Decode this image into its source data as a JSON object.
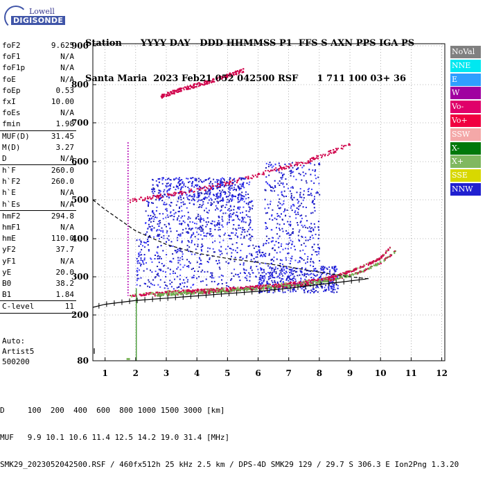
{
  "logo": {
    "line1": "Lowell",
    "line2": "DIGISONDE"
  },
  "header": {
    "row1": "Station      YYYY DAY   DDD HHMMSS P1  FFS S AXN PPS IGA PS",
    "row2": "Santa Maria  2023 Feb21 052 042500 RSF      1 711 100 03+ 36"
  },
  "parameters": {
    "group1": [
      {
        "k": "foF2",
        "v": "9.625"
      },
      {
        "k": "foF1",
        "v": "N/A"
      },
      {
        "k": "foF1p",
        "v": "N/A"
      },
      {
        "k": "foE",
        "v": "N/A"
      },
      {
        "k": "foEp",
        "v": "0.53"
      },
      {
        "k": "fxI",
        "v": "10.00"
      },
      {
        "k": "foEs",
        "v": "N/A"
      },
      {
        "k": "fmin",
        "v": "1.98"
      }
    ],
    "group2": [
      {
        "k": "MUF(D)",
        "v": "31.45"
      },
      {
        "k": "M(D)",
        "v": "3.27"
      },
      {
        "k": "D",
        "v": "N/A"
      }
    ],
    "group3": [
      {
        "k": "h`F",
        "v": "260.0"
      },
      {
        "k": "h`F2",
        "v": "260.0"
      },
      {
        "k": "h`E",
        "v": "N/A"
      },
      {
        "k": "h`Es",
        "v": "N/A"
      }
    ],
    "group4": [
      {
        "k": "hmF2",
        "v": "294.8"
      },
      {
        "k": "hmF1",
        "v": "N/A"
      },
      {
        "k": "hmE",
        "v": "110.0"
      },
      {
        "k": "yF2",
        "v": "37.7"
      },
      {
        "k": "yF1",
        "v": "N/A"
      },
      {
        "k": "yE",
        "v": "20.0"
      },
      {
        "k": "B0",
        "v": "38.2"
      },
      {
        "k": "B1",
        "v": "1.84"
      }
    ],
    "group5": [
      {
        "k": "C-level",
        "v": "11"
      }
    ]
  },
  "auto": {
    "line1": "Auto:",
    "line2": "Artist5",
    "line3": "500200"
  },
  "legend": [
    {
      "label": "NoVal",
      "bg": "#808080",
      "fg": "#ffffff"
    },
    {
      "label": "NNE",
      "bg": "#00e8f0",
      "fg": "#ffffff"
    },
    {
      "label": "E",
      "bg": "#2f9fff",
      "fg": "#ffffff"
    },
    {
      "label": "W",
      "bg": "#a000a0",
      "fg": "#ffffff"
    },
    {
      "label": "Vo-",
      "bg": "#e0006a",
      "fg": "#ffffff"
    },
    {
      "label": "Vo+",
      "bg": "#f00040",
      "fg": "#ffffff"
    },
    {
      "label": "SSW",
      "bg": "#f4a8a8",
      "fg": "#ffffff"
    },
    {
      "label": "X-",
      "bg": "#00780a",
      "fg": "#ffffff"
    },
    {
      "label": "X+",
      "bg": "#80b860",
      "fg": "#ffffff"
    },
    {
      "label": "SSE",
      "bg": "#d8d800",
      "fg": "#ffffff"
    },
    {
      "label": "NNW",
      "bg": "#2020d0",
      "fg": "#ffffff"
    }
  ],
  "bottom": {
    "row1": "D     100  200  400  600  800 1000 1500 3000 [km]",
    "row2": "MUF   9.9 10.1 10.6 11.4 12.5 14.2 19.0 31.4 [MHz]",
    "row3": "SMK29_2023052042500.RSF / 460fx512h 25 kHz 2.5 km / DPS-4D SMK29 129 / 29.7 S 306.3 E Ion2Png 1.3.20"
  },
  "chart_data": {
    "type": "scatter",
    "x_ticks": [
      "1",
      "2",
      "3",
      "4",
      "5",
      "6",
      "7",
      "8",
      "9",
      "10",
      "11",
      "12"
    ],
    "y_ticks": [
      "80",
      "200",
      "300",
      "400",
      "500",
      "600",
      "700",
      "800",
      "900"
    ],
    "xlim": [
      0.6,
      12.1
    ],
    "ylim": [
      80,
      900
    ],
    "y_scale": "nonlinear-virtual-height",
    "grid": "dotted",
    "traces": [
      {
        "name": "O-trace main",
        "color": "#d0004a",
        "points": [
          [
            1.8,
            252
          ],
          [
            2.5,
            258
          ],
          [
            3,
            262
          ],
          [
            4,
            266
          ],
          [
            5,
            270
          ],
          [
            6,
            276
          ],
          [
            7,
            284
          ],
          [
            8,
            294
          ],
          [
            8.5,
            304
          ],
          [
            9,
            316
          ],
          [
            9.5,
            332
          ],
          [
            10,
            352
          ],
          [
            10.3,
            380
          ]
        ]
      },
      {
        "name": "X-trace main",
        "color": "#70b050",
        "points": [
          [
            2.6,
            254
          ],
          [
            3.5,
            258
          ],
          [
            4.5,
            262
          ],
          [
            5.5,
            268
          ],
          [
            6.5,
            274
          ],
          [
            7.5,
            282
          ],
          [
            8.5,
            296
          ],
          [
            9,
            306
          ],
          [
            9.5,
            320
          ],
          [
            10,
            340
          ],
          [
            10.5,
            370
          ]
        ]
      },
      {
        "name": "second hop",
        "color": "#d0004a",
        "points": [
          [
            1.8,
            500
          ],
          [
            2.5,
            508
          ],
          [
            3.5,
            520
          ],
          [
            4.5,
            536
          ],
          [
            5.5,
            556
          ],
          [
            6.5,
            580
          ],
          [
            7.5,
            600
          ],
          [
            8.5,
            630
          ],
          [
            9,
            650
          ]
        ]
      },
      {
        "name": "third hop",
        "color": "#d0004a",
        "points": [
          [
            2.8,
            770
          ],
          [
            3.5,
            790
          ],
          [
            4.5,
            812
          ],
          [
            5.5,
            838
          ]
        ]
      }
    ],
    "scaled_profile": {
      "points": [
        [
          0.6,
          220
        ],
        [
          1,
          228
        ],
        [
          2,
          238
        ],
        [
          3,
          244
        ],
        [
          4,
          250
        ],
        [
          5,
          256
        ],
        [
          6,
          262
        ],
        [
          7,
          270
        ],
        [
          8,
          280
        ],
        [
          8.8,
          287
        ],
        [
          9.5,
          294
        ],
        [
          9.6,
          296
        ]
      ]
    },
    "model_trace": {
      "points": [
        [
          0.6,
          500
        ],
        [
          1,
          475
        ],
        [
          2,
          420
        ],
        [
          3,
          385
        ],
        [
          4,
          362
        ],
        [
          5,
          348
        ],
        [
          6,
          338
        ],
        [
          7,
          326
        ],
        [
          8,
          312
        ],
        [
          9,
          300
        ],
        [
          9.6,
          295
        ]
      ]
    },
    "blue_clusters": [
      {
        "x": [
          2.5,
          5.7
        ],
        "y": [
          500,
          560
        ]
      },
      {
        "x": [
          2.3,
          5.8
        ],
        "y": [
          400,
          500
        ]
      },
      {
        "x": [
          2.0,
          6.2
        ],
        "y": [
          270,
          400
        ]
      },
      {
        "x": [
          6.0,
          8.6
        ],
        "y": [
          260,
          330
        ]
      },
      {
        "x": [
          6.2,
          8.0
        ],
        "y": [
          330,
          600
        ]
      }
    ]
  }
}
